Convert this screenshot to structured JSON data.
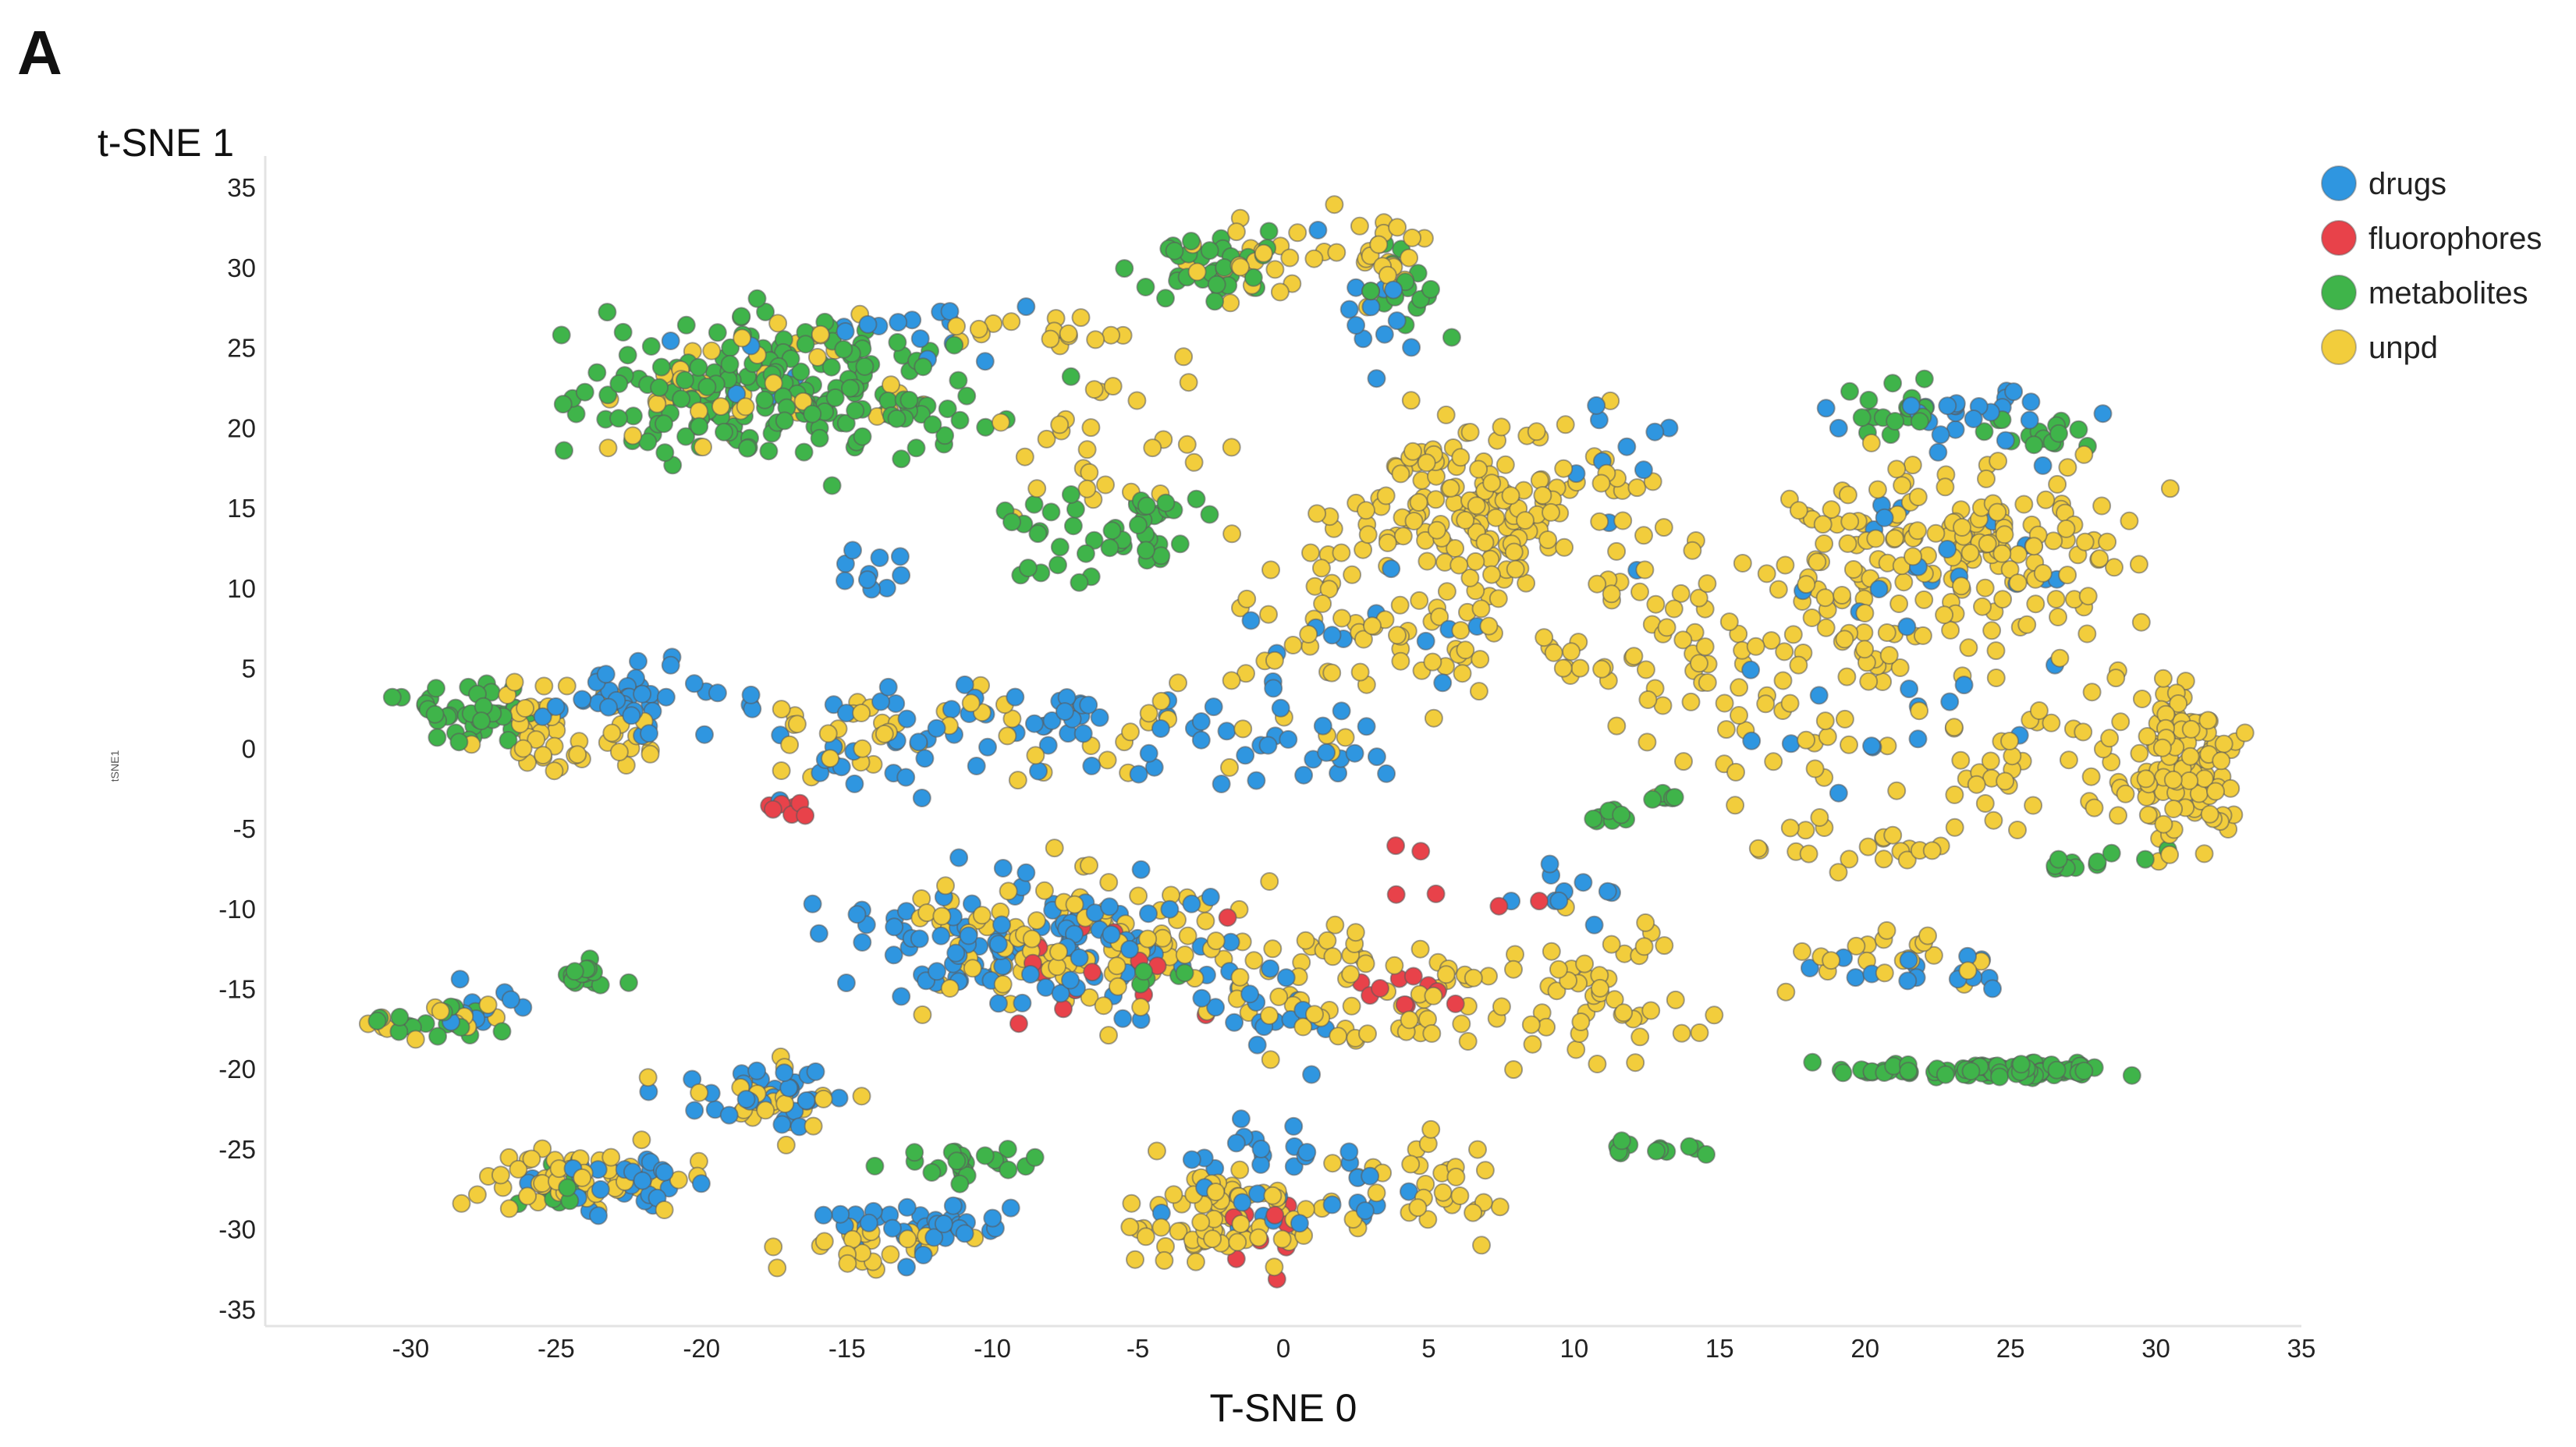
{
  "panel_label": "A",
  "chart_data": {
    "type": "scatter",
    "title": "",
    "xlabel": "T-SNE 0",
    "ylabel": "t-SNE 1",
    "ylabel_small": "tSNE1",
    "xlim": [
      -35,
      35
    ],
    "ylim": [
      -36,
      37
    ],
    "x_ticks": [
      -30,
      -25,
      -20,
      -15,
      -10,
      -5,
      0,
      5,
      10,
      15,
      20,
      25,
      30,
      35
    ],
    "y_ticks": [
      35,
      30,
      25,
      20,
      15,
      10,
      5,
      0,
      -5,
      -10,
      -15,
      -20,
      -25,
      -30,
      -35
    ],
    "grid": false,
    "legend_position": "top-right",
    "series_styles": [
      {
        "name": "drugs",
        "color": "#2f96e0"
      },
      {
        "name": "fluorophores",
        "color": "#e8424a"
      },
      {
        "name": "metabolites",
        "color": "#3fb44a"
      },
      {
        "name": "unpd",
        "color": "#f2cd3c"
      }
    ],
    "clusters": [
      {
        "series": "metabolites",
        "cx": -17,
        "cy": 22,
        "sx": 5.0,
        "sy": 3.0,
        "n": 210
      },
      {
        "series": "unpd",
        "cx": -18,
        "cy": 23,
        "sx": 4.5,
        "sy": 3.0,
        "n": 45
      },
      {
        "series": "drugs",
        "cx": -15,
        "cy": 24,
        "sx": 4.0,
        "sy": 2.5,
        "n": 12
      },
      {
        "series": "unpd",
        "cx": -9,
        "cy": 26,
        "sx": 2.0,
        "sy": 1.0,
        "n": 15
      },
      {
        "series": "drugs",
        "cx": -12,
        "cy": 27,
        "sx": 2.5,
        "sy": 1.0,
        "n": 8
      },
      {
        "series": "metabolites",
        "cx": -2,
        "cy": 30,
        "sx": 2.2,
        "sy": 1.5,
        "n": 35
      },
      {
        "series": "unpd",
        "cx": 0,
        "cy": 30,
        "sx": 3.0,
        "sy": 2.0,
        "n": 30
      },
      {
        "series": "unpd",
        "cx": 4,
        "cy": 31,
        "sx": 1.0,
        "sy": 2.0,
        "n": 20
      },
      {
        "series": "metabolites",
        "cx": 4,
        "cy": 29,
        "sx": 1.2,
        "sy": 2.0,
        "n": 15
      },
      {
        "series": "drugs",
        "cx": 3,
        "cy": 28,
        "sx": 1.5,
        "sy": 3.0,
        "n": 12
      },
      {
        "series": "unpd",
        "cx": -6,
        "cy": 20,
        "sx": 2.5,
        "sy": 3.5,
        "n": 30
      },
      {
        "series": "metabolites",
        "cx": -7,
        "cy": 13,
        "sx": 2.0,
        "sy": 2.0,
        "n": 35
      },
      {
        "series": "metabolites",
        "cx": -4,
        "cy": 15,
        "sx": 1.5,
        "sy": 0.5,
        "n": 12
      },
      {
        "series": "drugs",
        "cx": -14,
        "cy": 11,
        "sx": 1.0,
        "sy": 1.2,
        "n": 10
      },
      {
        "series": "unpd",
        "cx": 7,
        "cy": 15,
        "sx": 3.5,
        "sy": 4.0,
        "n": 150
      },
      {
        "series": "unpd",
        "cx": 3,
        "cy": 9,
        "sx": 4.0,
        "sy": 4.5,
        "n": 70
      },
      {
        "series": "drugs",
        "cx": 2,
        "cy": 7,
        "sx": 3.0,
        "sy": 4.0,
        "n": 15
      },
      {
        "series": "unpd",
        "cx": 13,
        "cy": 6,
        "sx": 4.5,
        "sy": 5.0,
        "n": 80
      },
      {
        "series": "drugs",
        "cx": 23,
        "cy": 21,
        "sx": 3.5,
        "sy": 1.2,
        "n": 25
      },
      {
        "series": "metabolites",
        "cx": 21,
        "cy": 21,
        "sx": 1.2,
        "sy": 1.2,
        "n": 18
      },
      {
        "series": "metabolites",
        "cx": 26,
        "cy": 20,
        "sx": 1.5,
        "sy": 1.5,
        "n": 15
      },
      {
        "series": "unpd",
        "cx": 24,
        "cy": 12,
        "sx": 4.0,
        "sy": 4.0,
        "n": 140
      },
      {
        "series": "unpd",
        "cx": 19,
        "cy": 10,
        "sx": 3.0,
        "sy": 4.5,
        "n": 50
      },
      {
        "series": "drugs",
        "cx": 21,
        "cy": 12,
        "sx": 4.5,
        "sy": 4.0,
        "n": 20
      },
      {
        "series": "unpd",
        "cx": 31,
        "cy": -1,
        "sx": 1.2,
        "sy": 3.5,
        "n": 110
      },
      {
        "series": "unpd",
        "cx": 24,
        "cy": 0,
        "sx": 4.0,
        "sy": 4.0,
        "n": 60
      },
      {
        "series": "drugs",
        "cx": 22,
        "cy": 2,
        "sx": 4.5,
        "sy": 4.0,
        "n": 15
      },
      {
        "series": "metabolites",
        "cx": 28,
        "cy": -7,
        "sx": 1.5,
        "sy": 0.6,
        "n": 12
      },
      {
        "series": "unpd",
        "cx": 20,
        "cy": -6,
        "sx": 3.0,
        "sy": 1.5,
        "n": 20
      },
      {
        "series": "metabolites",
        "cx": -28,
        "cy": 2,
        "sx": 1.5,
        "sy": 1.5,
        "n": 40
      },
      {
        "series": "unpd",
        "cx": -24,
        "cy": 1,
        "sx": 2.5,
        "sy": 2.0,
        "n": 50
      },
      {
        "series": "drugs",
        "cx": -22,
        "cy": 3,
        "sx": 2.5,
        "sy": 2.0,
        "n": 40
      },
      {
        "series": "unpd",
        "cx": -15,
        "cy": 1,
        "sx": 2.5,
        "sy": 2.0,
        "n": 25
      },
      {
        "series": "drugs",
        "cx": -14,
        "cy": 0,
        "sx": 3.0,
        "sy": 2.5,
        "n": 25
      },
      {
        "series": "fluorophores",
        "cx": -17,
        "cy": -4,
        "sx": 0.6,
        "sy": 0.5,
        "n": 7
      },
      {
        "series": "drugs",
        "cx": -7,
        "cy": 2,
        "sx": 5.0,
        "sy": 2.0,
        "n": 40
      },
      {
        "series": "unpd",
        "cx": -5,
        "cy": 1,
        "sx": 5.0,
        "sy": 2.0,
        "n": 25
      },
      {
        "series": "drugs",
        "cx": 0,
        "cy": -1,
        "sx": 2.5,
        "sy": 1.5,
        "n": 15
      },
      {
        "series": "drugs",
        "cx": -8,
        "cy": -12,
        "sx": 4.5,
        "sy": 3.0,
        "n": 120
      },
      {
        "series": "unpd",
        "cx": -7,
        "cy": -12,
        "sx": 4.5,
        "sy": 3.2,
        "n": 120
      },
      {
        "series": "fluorophores",
        "cx": -5,
        "cy": -14,
        "sx": 3.5,
        "sy": 2.5,
        "n": 14
      },
      {
        "series": "metabolites",
        "cx": -4,
        "cy": -14,
        "sx": 1.2,
        "sy": 0.5,
        "n": 6
      },
      {
        "series": "unpd",
        "cx": 3,
        "cy": -15,
        "sx": 3.0,
        "sy": 3.0,
        "n": 50
      },
      {
        "series": "fluorophores",
        "cx": 4,
        "cy": -15,
        "sx": 1.5,
        "sy": 1.5,
        "n": 10
      },
      {
        "series": "drugs",
        "cx": 0,
        "cy": -17,
        "sx": 2.5,
        "sy": 2.0,
        "n": 15
      },
      {
        "series": "unpd",
        "cx": 10,
        "cy": -15,
        "sx": 3.5,
        "sy": 3.0,
        "n": 60
      },
      {
        "series": "metabolites",
        "cx": 11,
        "cy": -4,
        "sx": 0.8,
        "sy": 0.4,
        "n": 8
      },
      {
        "series": "metabolites",
        "cx": 13,
        "cy": -3,
        "sx": 0.8,
        "sy": 0.3,
        "n": 6
      },
      {
        "series": "drugs",
        "cx": 10,
        "cy": -9,
        "sx": 1.5,
        "sy": 1.5,
        "n": 10
      },
      {
        "series": "unpd",
        "cx": 21,
        "cy": -13,
        "sx": 2.5,
        "sy": 1.0,
        "n": 20
      },
      {
        "series": "drugs",
        "cx": 22,
        "cy": -14,
        "sx": 2.5,
        "sy": 1.0,
        "n": 15
      },
      {
        "series": "metabolites",
        "cx": 25,
        "cy": -20,
        "sx": 2.2,
        "sy": 0.35,
        "n": 90
      },
      {
        "series": "metabolites",
        "cx": 20,
        "cy": -20,
        "sx": 1.5,
        "sy": 0.4,
        "n": 15
      },
      {
        "series": "metabolites",
        "cx": 13,
        "cy": -25,
        "sx": 1.5,
        "sy": 0.4,
        "n": 12
      },
      {
        "series": "unpd",
        "cx": -2,
        "cy": -29,
        "sx": 2.3,
        "sy": 2.0,
        "n": 80
      },
      {
        "series": "drugs",
        "cx": 0,
        "cy": -27,
        "sx": 3.0,
        "sy": 2.5,
        "n": 35
      },
      {
        "series": "fluorophores",
        "cx": -1,
        "cy": -30,
        "sx": 2.0,
        "sy": 1.8,
        "n": 10
      },
      {
        "series": "unpd",
        "cx": 5,
        "cy": -27,
        "sx": 2.0,
        "sy": 2.0,
        "n": 30
      },
      {
        "series": "metabolites",
        "cx": -29,
        "cy": -17,
        "sx": 1.5,
        "sy": 1.0,
        "n": 20
      },
      {
        "series": "unpd",
        "cx": -29,
        "cy": -17,
        "sx": 1.8,
        "sy": 1.0,
        "n": 15
      },
      {
        "series": "drugs",
        "cx": -27,
        "cy": -16,
        "sx": 1.5,
        "sy": 1.5,
        "n": 10
      },
      {
        "series": "metabolites",
        "cx": -24,
        "cy": -14,
        "sx": 0.8,
        "sy": 0.8,
        "n": 15
      },
      {
        "series": "unpd",
        "cx": -24,
        "cy": -27,
        "sx": 2.5,
        "sy": 1.5,
        "n": 50
      },
      {
        "series": "drugs",
        "cx": -23,
        "cy": -27,
        "sx": 2.5,
        "sy": 1.5,
        "n": 30
      },
      {
        "series": "metabolites",
        "cx": -25,
        "cy": -27,
        "sx": 1.2,
        "sy": 1.0,
        "n": 12
      },
      {
        "series": "drugs",
        "cx": -18,
        "cy": -22,
        "sx": 2.0,
        "sy": 1.5,
        "n": 30
      },
      {
        "series": "unpd",
        "cx": -18,
        "cy": -22,
        "sx": 2.0,
        "sy": 1.5,
        "n": 25
      },
      {
        "series": "metabolites",
        "cx": -11,
        "cy": -26,
        "sx": 1.5,
        "sy": 0.7,
        "n": 25
      },
      {
        "series": "drugs",
        "cx": -12,
        "cy": -30,
        "sx": 2.5,
        "sy": 1.5,
        "n": 40
      },
      {
        "series": "unpd",
        "cx": -14,
        "cy": -31,
        "sx": 2.0,
        "sy": 1.0,
        "n": 25
      },
      {
        "series": "drugs",
        "cx": 12,
        "cy": 15,
        "sx": 3.0,
        "sy": 5.0,
        "n": 10
      },
      {
        "series": "fluorophores",
        "cx": 6,
        "cy": -8,
        "sx": 2.5,
        "sy": 2.0,
        "n": 6
      }
    ]
  }
}
